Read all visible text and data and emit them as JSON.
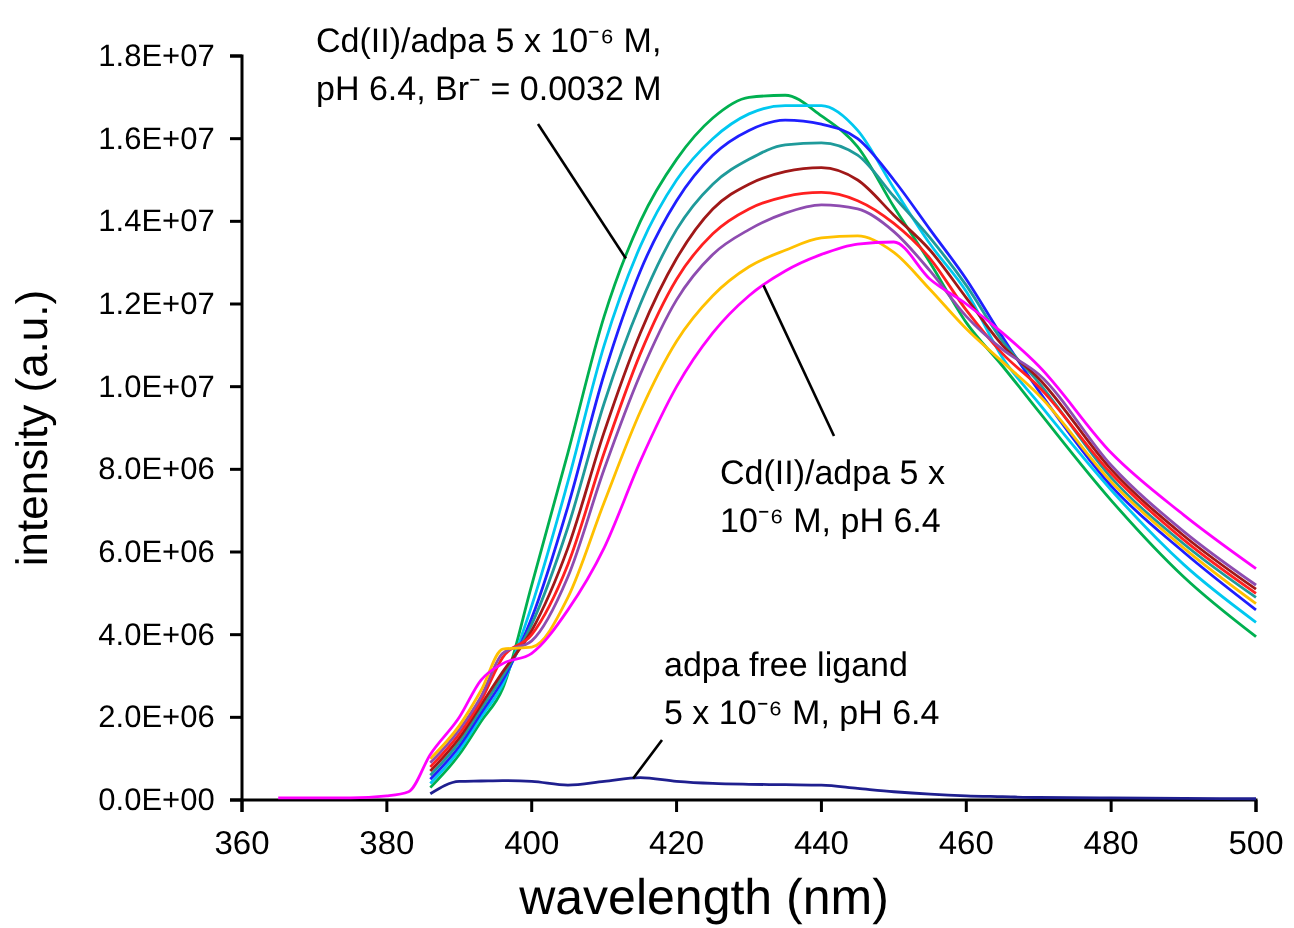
{
  "chart_data": {
    "type": "line",
    "xlabel": "wavelength (nm)",
    "ylabel": "intensity (a.u.)",
    "x": [
      365,
      375,
      380,
      383,
      386,
      390,
      393,
      396,
      400,
      405,
      410,
      415,
      420,
      425,
      430,
      435,
      440,
      445,
      450,
      455,
      460,
      465,
      470,
      480,
      490,
      500
    ],
    "xlim": [
      360,
      500
    ],
    "xticks": [
      360,
      380,
      400,
      420,
      440,
      460,
      480,
      500
    ],
    "ylim": [
      0,
      18000000
    ],
    "yticks": [
      {
        "value": 0,
        "label": "0.0E+00"
      },
      {
        "value": 2000000,
        "label": "2.0E+06"
      },
      {
        "value": 4000000,
        "label": "4.0E+06"
      },
      {
        "value": 6000000,
        "label": "6.0E+06"
      },
      {
        "value": 8000000,
        "label": "8.0E+06"
      },
      {
        "value": 10000000,
        "label": "1.0E+07"
      },
      {
        "value": 12000000,
        "label": "1.2E+07"
      },
      {
        "value": 14000000,
        "label": "1.4E+07"
      },
      {
        "value": 16000000,
        "label": "1.6E+07"
      },
      {
        "value": 18000000,
        "label": "1.8E+07"
      }
    ],
    "grid": false,
    "marker": "none",
    "line_style": "solid",
    "series": [
      {
        "color": "#00b050",
        "values": [
          null,
          null,
          null,
          null,
          300000.0,
          1100000.0,
          1900000.0,
          2700000.0,
          5200000.0,
          8400000.0,
          11700000.0,
          14000000.0,
          15500000.0,
          16500000.0,
          17000000.0,
          17050000.0,
          16550000.0,
          15800000.0,
          14350000.0,
          13000000.0,
          11550000.0,
          10500000.0,
          9400000.0,
          7250000.0,
          5400000.0,
          3950000.0
        ]
      },
      {
        "color": "#00c8f0",
        "values": [
          null,
          null,
          null,
          null,
          400000.0,
          1200000.0,
          2000000.0,
          2800000.0,
          4700000.0,
          7700000.0,
          11000000.0,
          13400000.0,
          15000000.0,
          16000000.0,
          16600000.0,
          16800000.0,
          16800000.0,
          16200000.0,
          14800000.0,
          13450000.0,
          12300000.0,
          10700000.0,
          9600000.0,
          7500000.0,
          5700000.0,
          4300000.0
        ]
      },
      {
        "color": "#1f1fff",
        "values": [
          null,
          null,
          null,
          null,
          500000.0,
          1300000.0,
          2100000.0,
          2900000.0,
          4400000.0,
          7100000.0,
          10300000.0,
          12800000.0,
          14500000.0,
          15600000.0,
          16200000.0,
          16450000.0,
          16350000.0,
          16000000.0,
          15000000.0,
          13800000.0,
          12600000.0,
          11200000.0,
          9900000.0,
          7600000.0,
          6000000.0,
          4600000.0
        ]
      },
      {
        "color": "#1f9a9a",
        "values": [
          null,
          null,
          null,
          null,
          600000.0,
          1400000.0,
          2200000.0,
          3000000.0,
          4250000.0,
          6600000.0,
          9600000.0,
          12000000.0,
          13800000.0,
          14900000.0,
          15500000.0,
          15850000.0,
          15900000.0,
          15600000.0,
          14600000.0,
          13600000.0,
          12450000.0,
          11100000.0,
          10100000.0,
          7800000.0,
          6200000.0,
          4900000.0
        ]
      },
      {
        "color": "#a01818",
        "values": [
          null,
          null,
          null,
          null,
          700000.0,
          1500000.0,
          2300000.0,
          3100000.0,
          4100000.0,
          6100000.0,
          8900000.0,
          11300000.0,
          13100000.0,
          14300000.0,
          14900000.0,
          15200000.0,
          15300000.0,
          15000000.0,
          14150000.0,
          13300000.0,
          12150000.0,
          11000000.0,
          10200000.0,
          8000000.0,
          6400000.0,
          5100000.0
        ]
      },
      {
        "color": "#ff2020",
        "values": [
          null,
          null,
          null,
          null,
          800000.0,
          1600000.0,
          2400000.0,
          3450000.0,
          4000000.0,
          5700000.0,
          8400000.0,
          10800000.0,
          12600000.0,
          13700000.0,
          14300000.0,
          14600000.0,
          14700000.0,
          14500000.0,
          13950000.0,
          13100000.0,
          11850000.0,
          10800000.0,
          10000000.0,
          7900000.0,
          6300000.0,
          5000000.0
        ]
      },
      {
        "color": "#8e4cb0",
        "values": [
          null,
          null,
          null,
          null,
          900000.0,
          1700000.0,
          2500000.0,
          3550000.0,
          3850000.0,
          5400000.0,
          8000000.0,
          10300000.0,
          12100000.0,
          13200000.0,
          13800000.0,
          14200000.0,
          14400000.0,
          14300000.0,
          13750000.0,
          12800000.0,
          11700000.0,
          10900000.0,
          10300000.0,
          8100000.0,
          6500000.0,
          5200000.0
        ]
      },
      {
        "color": "#ffc000",
        "values": [
          null,
          null,
          null,
          null,
          1000000.0,
          1800000.0,
          2650000.0,
          3650000.0,
          3700000.0,
          4900000.0,
          7200000.0,
          9400000.0,
          11100000.0,
          12200000.0,
          12900000.0,
          13300000.0,
          13600000.0,
          13650000.0,
          13250000.0,
          12350000.0,
          11400000.0,
          10600000.0,
          9800000.0,
          7700000.0,
          6100000.0,
          4750000.0
        ]
      },
      {
        "color": "#ff00ff",
        "values": [
          50000.0,
          50000.0,
          100000.0,
          200000.0,
          1100000.0,
          2000000.0,
          2900000.0,
          3300000.0,
          3550000.0,
          4600000.0,
          6100000.0,
          8200000.0,
          10000000.0,
          11300000.0,
          12200000.0,
          12800000.0,
          13200000.0,
          13450000.0,
          13500000.0,
          12600000.0,
          12000000.0,
          11300000.0,
          10500000.0,
          8400000.0,
          6900000.0,
          5600000.0
        ]
      },
      {
        "color": "#1f1f8f",
        "values": [
          null,
          null,
          null,
          null,
          150000.0,
          450000.0,
          460000.0,
          470000.0,
          450000.0,
          360000.0,
          450000.0,
          540000.0,
          450000.0,
          400000.0,
          380000.0,
          370000.0,
          360000.0,
          280000.0,
          200000.0,
          140000.0,
          100000.0,
          80000.0,
          60000.0,
          50000.0,
          40000.0,
          30000.0
        ]
      }
    ],
    "annotations": [
      {
        "text": "Cd(II)/adpa 5 x 10⁻⁶ M,\npH 6.4, Br⁻ = 0.0032 M",
        "x": 413,
        "y": 13100000
      },
      {
        "text": "Cd(II)/adpa 5 x\n10⁻⁶ M, pH 6.4",
        "x": 432,
        "y": 12450000
      },
      {
        "text": "adpa free ligand\n5 x 10⁻⁶ M, pH 6.4",
        "x": 414,
        "y": 520000
      }
    ]
  }
}
